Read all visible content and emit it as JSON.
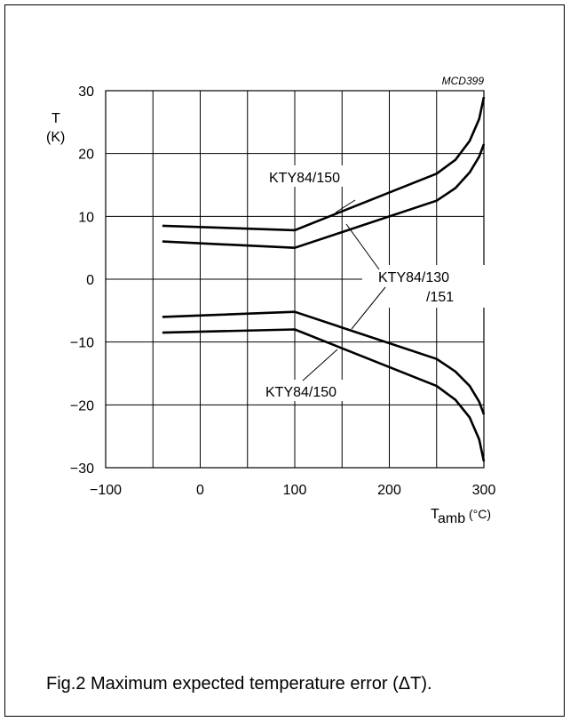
{
  "caption": "Fig.2  Maximum expected temperature error (ΔT).",
  "chart_data": {
    "type": "line",
    "code": "MCD399",
    "ylabel_line1": "T",
    "ylabel_line2": "(K)",
    "xlabel_main": "T",
    "xlabel_sub": "amb",
    "xlabel_unit": " (°C)",
    "xlim": [
      -100,
      300
    ],
    "ylim": [
      -30,
      30
    ],
    "xticks": [
      -100,
      0,
      100,
      200,
      300
    ],
    "xtick_labels": [
      "−100",
      "0",
      "100",
      "200",
      "300"
    ],
    "yticks": [
      30,
      20,
      10,
      0,
      -10,
      -20,
      -30
    ],
    "ytick_labels": [
      "30",
      "20",
      "10",
      "0",
      "−10",
      "−20",
      "−30"
    ],
    "grid": true,
    "grid_step_x": 50,
    "grid_step_y": 10,
    "series": [
      {
        "label_group": "KTY84/150",
        "points": [
          [
            -40,
            8.5
          ],
          [
            100,
            7.8
          ],
          [
            250,
            16.8
          ],
          [
            270,
            19
          ],
          [
            285,
            22
          ],
          [
            295,
            25.5
          ],
          [
            300,
            29
          ]
        ]
      },
      {
        "label_group": "KTY84/130/151",
        "points": [
          [
            -40,
            6
          ],
          [
            100,
            5
          ],
          [
            250,
            12.5
          ],
          [
            270,
            14.5
          ],
          [
            285,
            17
          ],
          [
            295,
            19.5
          ],
          [
            300,
            21.5
          ]
        ]
      },
      {
        "label_group": "KTY84/130/151",
        "points": [
          [
            -40,
            -6
          ],
          [
            100,
            -5.2
          ],
          [
            250,
            -12.7
          ],
          [
            270,
            -14.7
          ],
          [
            285,
            -17
          ],
          [
            295,
            -19.5
          ],
          [
            300,
            -21.5
          ]
        ]
      },
      {
        "label_group": "KTY84/150",
        "points": [
          [
            -40,
            -8.5
          ],
          [
            100,
            -8
          ],
          [
            250,
            -17
          ],
          [
            270,
            -19.2
          ],
          [
            285,
            -22
          ],
          [
            295,
            -25.5
          ],
          [
            300,
            -29
          ]
        ]
      }
    ],
    "annotations": [
      {
        "line1": "KTY84/150",
        "line2": ""
      },
      {
        "line1": "KTY84/130",
        "line2": "/151"
      },
      {
        "line1": "KTY84/150",
        "line2": ""
      }
    ]
  }
}
